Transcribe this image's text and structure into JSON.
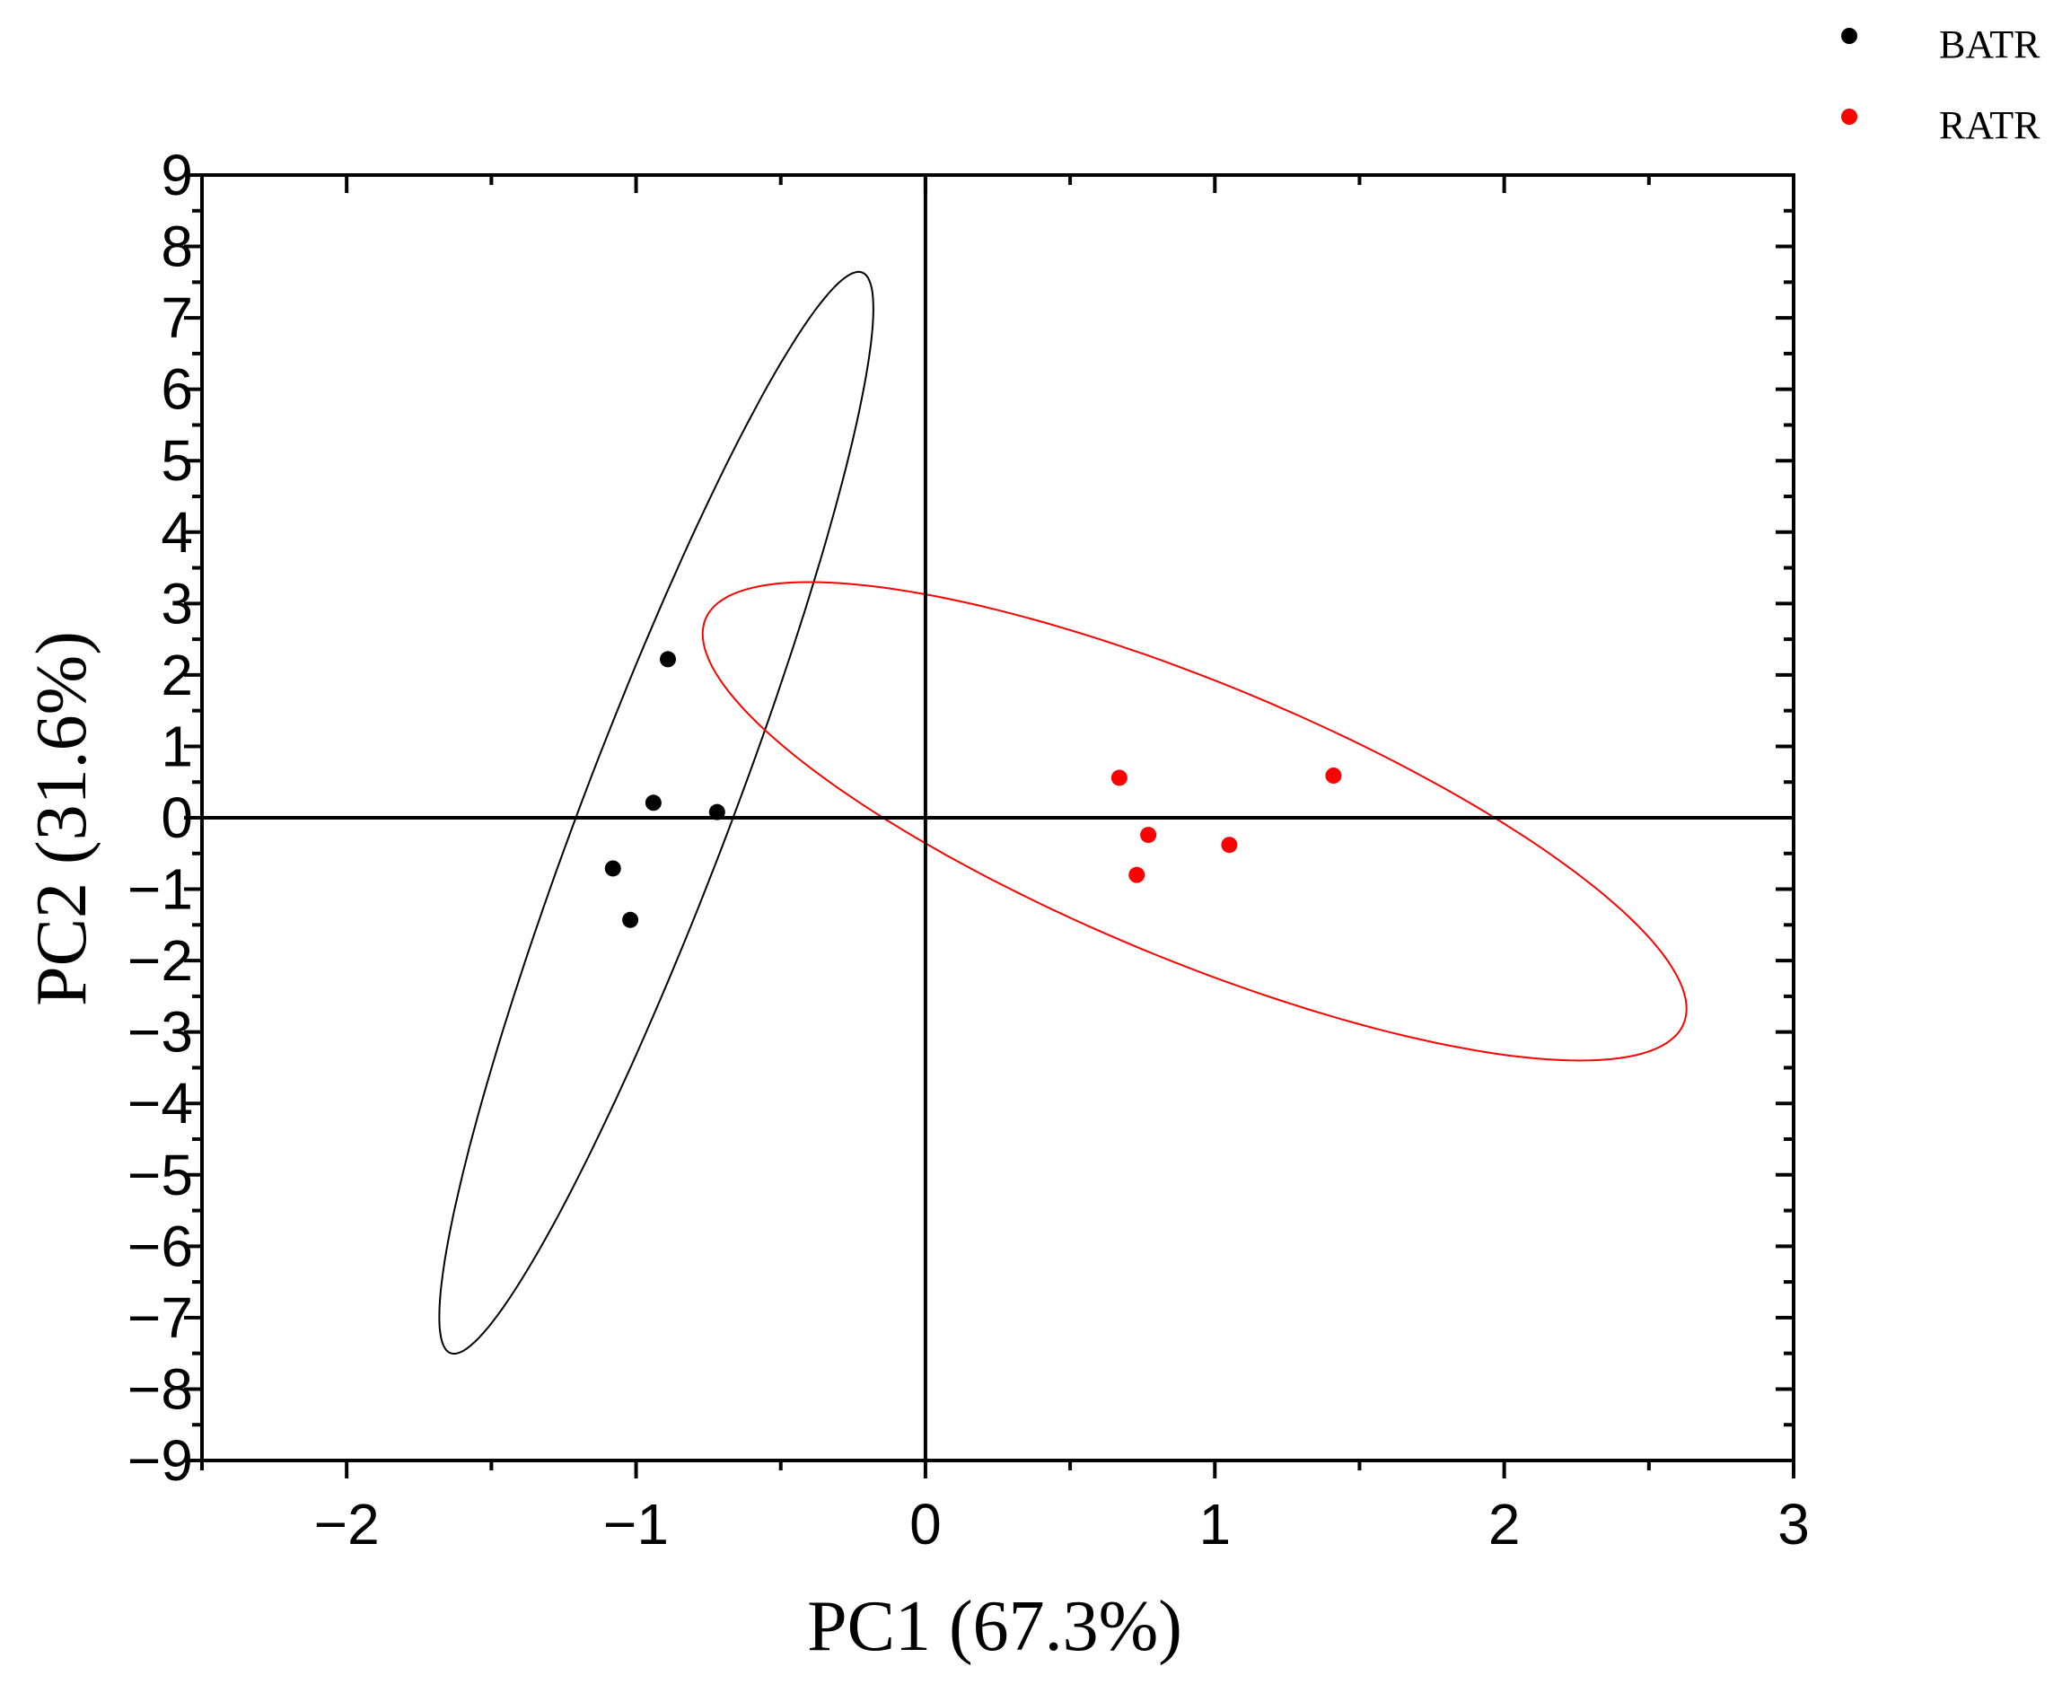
{
  "chart_data": {
    "type": "scatter",
    "xlabel": "PC1 (67.3%)",
    "ylabel": "PC2 (31.6%)",
    "xlim": [
      -2.5,
      3
    ],
    "ylim": [
      -9,
      9
    ],
    "xticks": [
      -2,
      -1,
      0,
      1,
      2,
      3
    ],
    "xtick_labels": [
      "−2",
      "−1",
      "0",
      "1",
      "2",
      "3"
    ],
    "yticks": [
      9,
      8,
      7,
      6,
      5,
      4,
      3,
      2,
      1,
      0,
      -1,
      -2,
      -3,
      -4,
      -5,
      -6,
      -7,
      -8,
      -9
    ],
    "ytick_labels": [
      "9",
      "8",
      "7",
      "6",
      "5",
      "4",
      "3",
      "2",
      "1",
      "0",
      "−1",
      "−2",
      "−3",
      "−4",
      "−5",
      "−6",
      "−7",
      "−8",
      "−9"
    ],
    "zero_lines": true,
    "grid": false,
    "legend_position": "top-right, outside plot",
    "series": [
      {
        "name": "BATR",
        "color": "#000000",
        "points": [
          {
            "x": -0.89,
            "y": 2.22
          },
          {
            "x": -0.94,
            "y": 0.21
          },
          {
            "x": -0.72,
            "y": 0.08
          },
          {
            "x": -1.08,
            "y": -0.71
          },
          {
            "x": -1.02,
            "y": -1.43
          }
        ],
        "confidence_ellipse": {
          "cx": -0.93,
          "cy": 0.07,
          "x_extent": [
            -1.7,
            -0.2
          ],
          "y_extent": [
            -7.5,
            7.65
          ]
        }
      },
      {
        "name": "RATR",
        "color": "#ff0000",
        "points": [
          {
            "x": 0.67,
            "y": 0.56
          },
          {
            "x": 1.41,
            "y": 0.59
          },
          {
            "x": 0.77,
            "y": -0.24
          },
          {
            "x": 1.05,
            "y": -0.38
          },
          {
            "x": 0.73,
            "y": -0.8
          }
        ],
        "confidence_ellipse": {
          "cx": 0.93,
          "cy": -0.05,
          "x_extent": [
            -0.78,
            2.62
          ],
          "y_extent": [
            -3.4,
            3.3
          ]
        }
      }
    ]
  }
}
